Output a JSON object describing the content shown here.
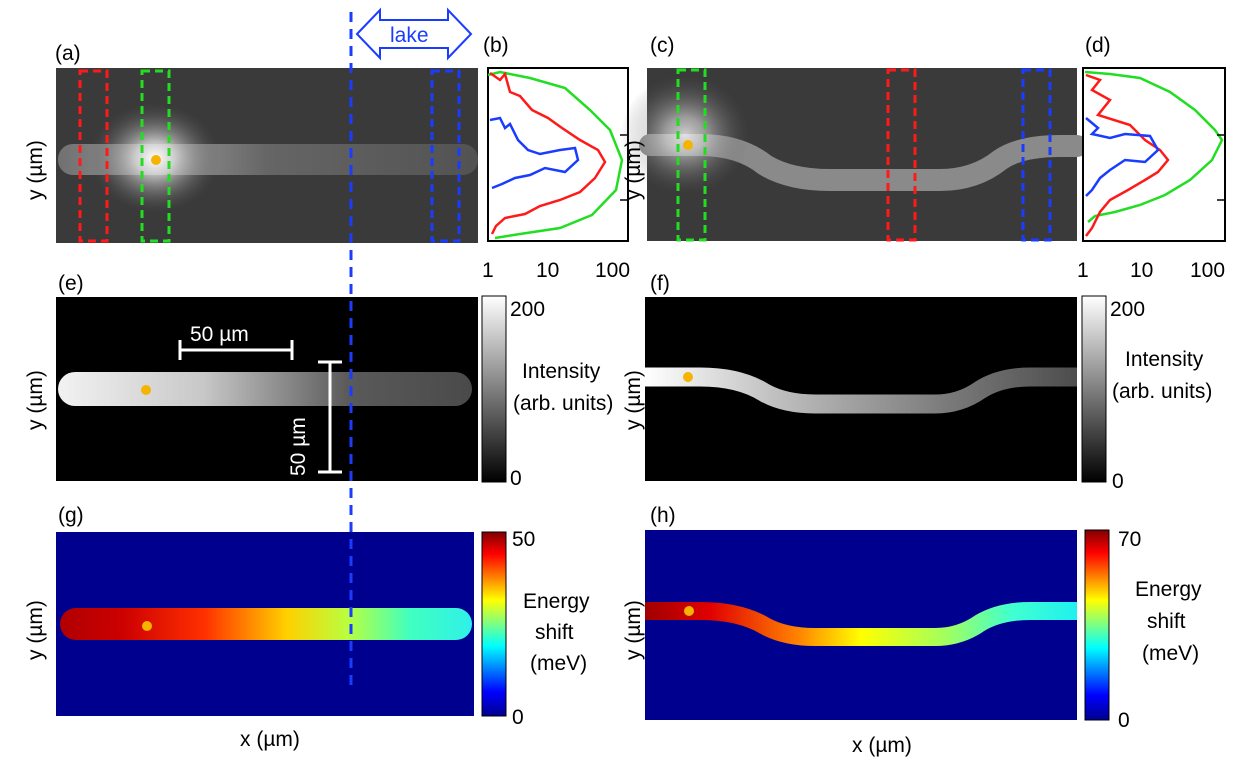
{
  "panels": {
    "a": "(a)",
    "b": "(b)",
    "c": "(c)",
    "d": "(d)",
    "e": "(e)",
    "f": "(f)",
    "g": "(g)",
    "h": "(h)"
  },
  "axes": {
    "y_label": "y (µm)",
    "x_label": "x (µm)"
  },
  "profile_ticks": [
    "1",
    "10",
    "100"
  ],
  "annotations": {
    "lake": "lake",
    "scale_h": "50 µm",
    "scale_v": "50 µm"
  },
  "colorbars": {
    "intensity": {
      "label_lines": [
        "Intensity",
        "(arb. units)"
      ],
      "max_left": "200",
      "max_right": "200",
      "min": "0"
    },
    "energy_left": {
      "label_lines": [
        "Energy",
        "shift",
        "(meV)"
      ],
      "max": "50",
      "min": "0"
    },
    "energy_right": {
      "label_lines": [
        "Energy",
        "shift",
        "(meV)"
      ],
      "max": "70",
      "min": "0"
    }
  },
  "colors": {
    "red_box": "#ff1a1a",
    "green_box": "#22dd22",
    "blue_box": "#1a3cff",
    "lake_line": "#1a3cff",
    "dot": "#f5b400",
    "jet_background": "#00008f"
  }
}
